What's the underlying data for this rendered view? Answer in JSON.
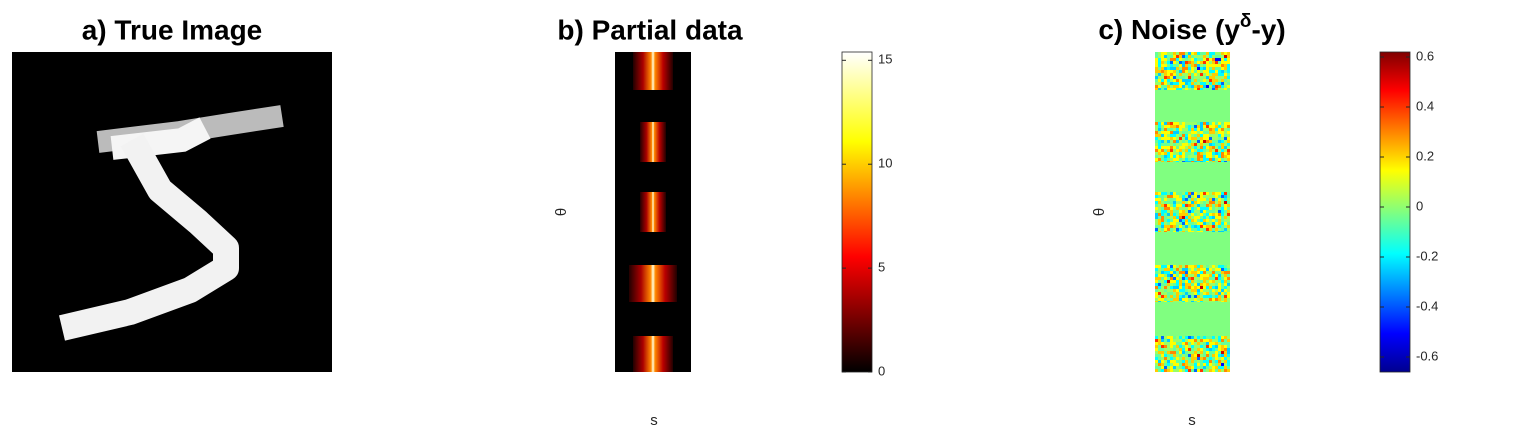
{
  "chart_data": [
    {
      "type": "image",
      "title": "a) True Image"
    },
    {
      "type": "heatmap",
      "title": "b) Partial data",
      "xlabel": "s",
      "ylabel": "θ",
      "colormap": "hot",
      "clim": [
        0,
        15.4
      ],
      "cticks": [
        0,
        5,
        10,
        15
      ]
    },
    {
      "type": "heatmap",
      "title": [
        "c) Noise (y",
        "δ",
        "-y)"
      ],
      "xlabel": "s",
      "ylabel": "θ",
      "colormap": "jet",
      "clim": [
        -0.66,
        0.62
      ],
      "cticks": [
        -0.6,
        -0.4,
        -0.2,
        0,
        0.2,
        0.4,
        0.6
      ]
    }
  ]
}
